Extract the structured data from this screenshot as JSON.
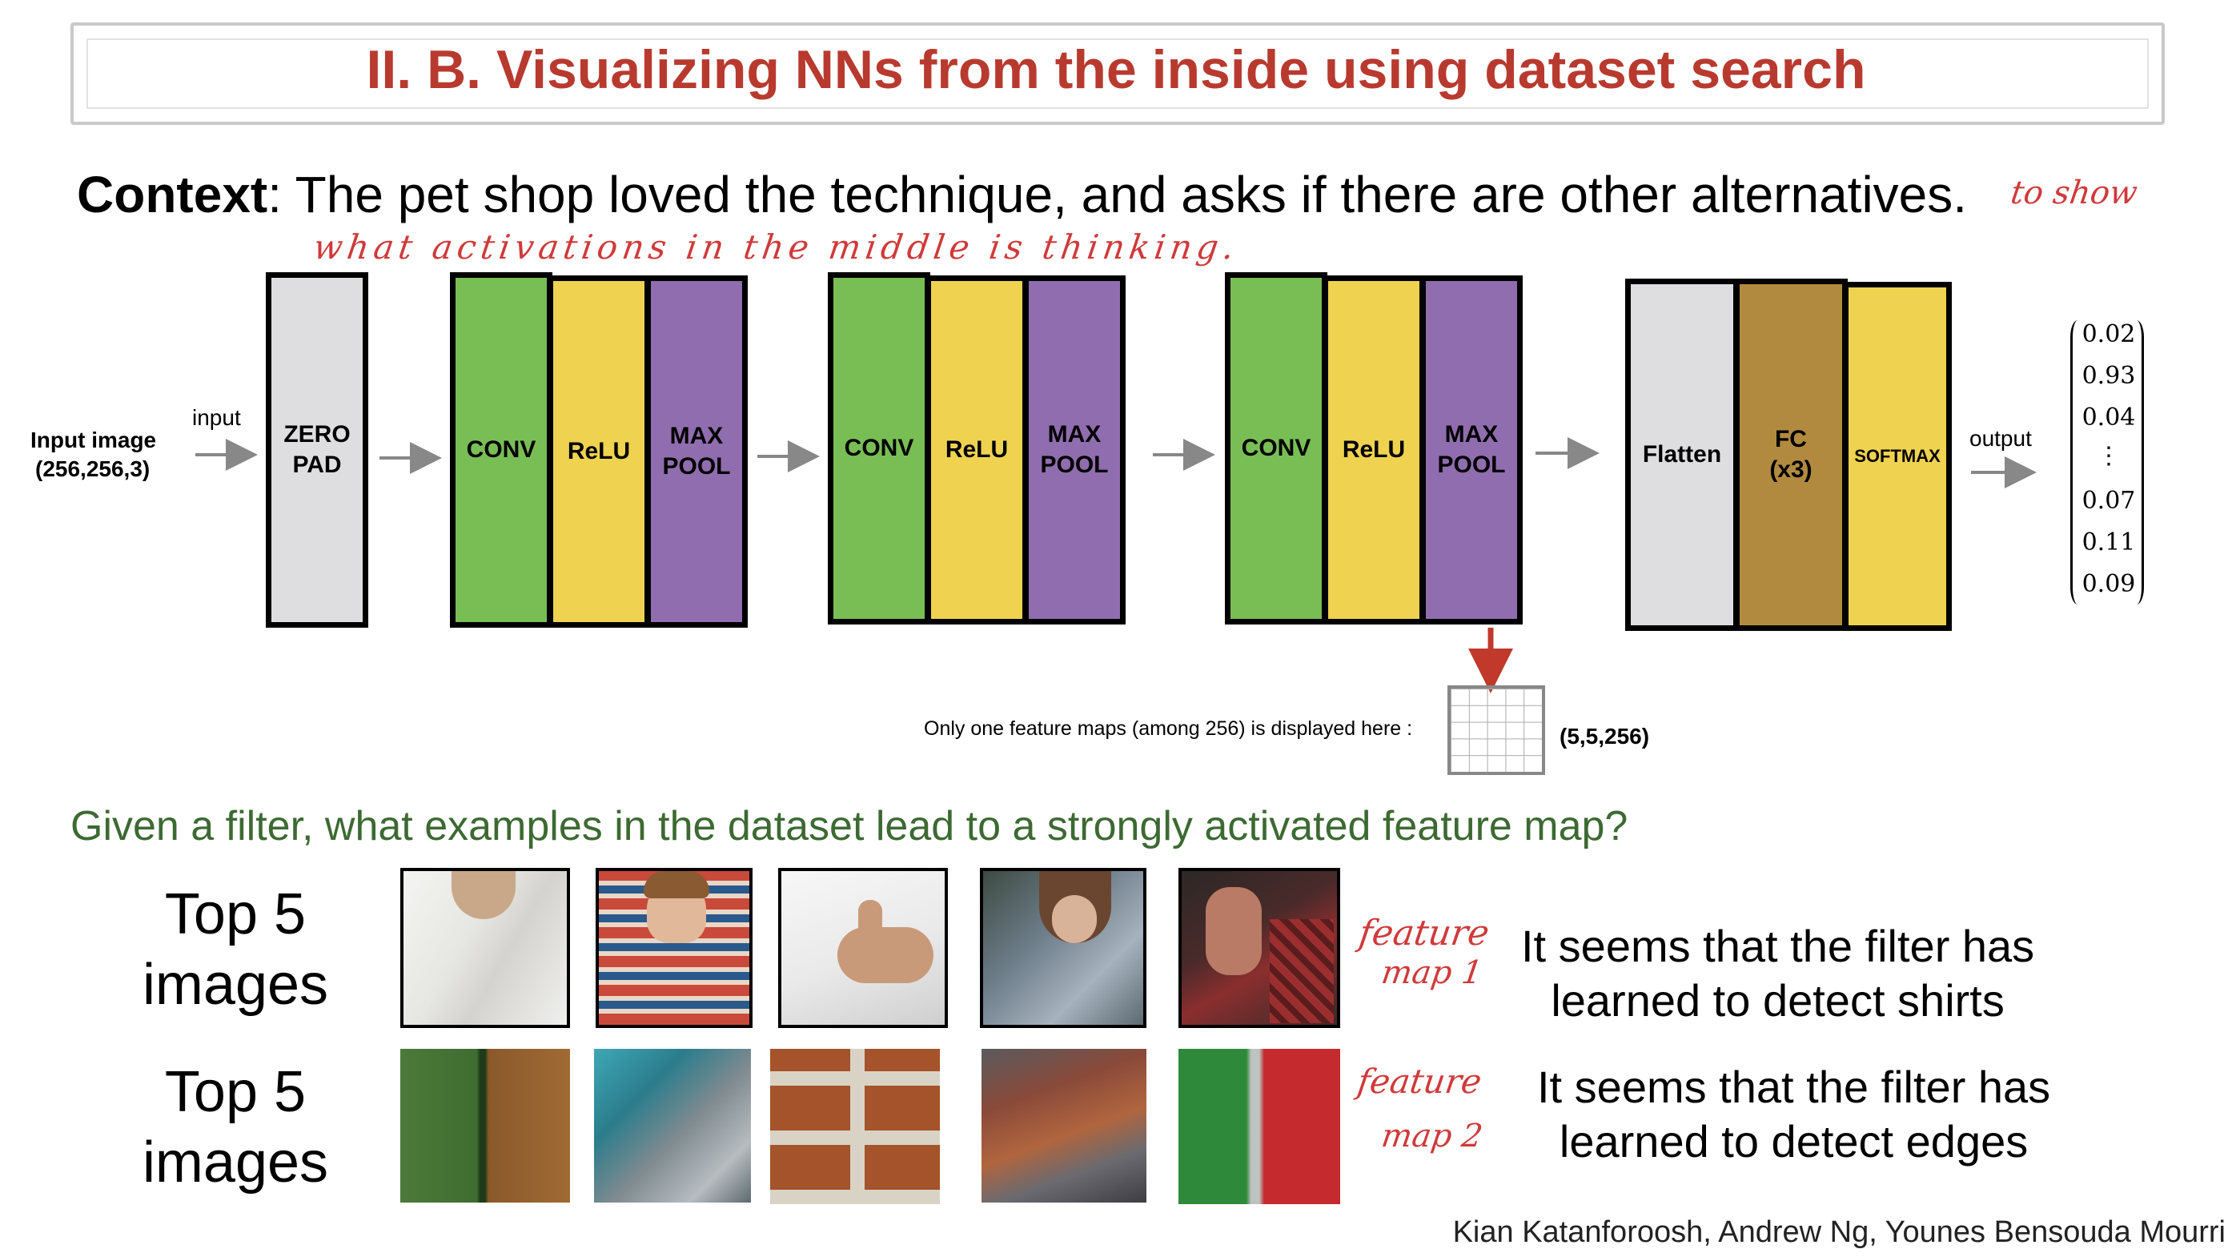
{
  "title": "II. B.  Visualizing NNs from the inside using dataset search",
  "context": {
    "label": "Context",
    "text": ": The pet shop loved the technique, and asks if there are other alternatives."
  },
  "handwriting": {
    "note_line1": "to show",
    "note_line2": "what activations in the middle is thinking.",
    "map1_line1": "feature",
    "map1_line2": "map 1",
    "map2_line1": "feature",
    "map2_line2": "map 2"
  },
  "network": {
    "input_label_line1": "Input image",
    "input_label_line2": "(256,256,3)",
    "input_arrow_label": "input",
    "zero_pad_line1": "ZERO",
    "zero_pad_line2": "PAD",
    "conv": "CONV",
    "relu": "ReLU",
    "maxpool_line1": "MAX",
    "maxpool_line2": "POOL",
    "flatten": "Flatten",
    "fc_line1": "FC",
    "fc_line2": "(x3)",
    "softmax": "SOFTMAX",
    "output_label": "output",
    "output_vector": [
      "0.02",
      "0.93",
      "0.04",
      "⋮",
      "0.07",
      "0.11",
      "0.09"
    ],
    "feature_map_caption": "Only one feature maps (among 256) is displayed here :",
    "feature_map_shape": "(5,5,256)"
  },
  "question": "Given a filter, what examples in the dataset lead to a strongly activated feature map?",
  "rows": [
    {
      "label_line1": "Top 5",
      "label_line2": "images",
      "conclusion_line1": "It seems that the filter has",
      "conclusion_line2": "learned to detect shirts",
      "image_names": [
        "white-shirt-photo",
        "plaid-shirt-boy-photo",
        "white-tshirt-thumbs-up-photo",
        "denim-shirt-woman-photo",
        "red-plaid-shirt-photo"
      ]
    },
    {
      "label_line1": "Top 5",
      "label_line2": "images",
      "conclusion_line1": "It seems that the filter has",
      "conclusion_line2": "learned to detect edges",
      "image_names": [
        "green-brown-edge-patch",
        "teal-blur-patch",
        "brick-wall-patch",
        "stone-brick-patch",
        "green-red-edge-patch"
      ]
    }
  ],
  "credit": "Kian Katanforoosh, Andrew Ng, Younes Bensouda Mourri",
  "colors": {
    "title": "#b83a2f",
    "question": "#3c6a32",
    "handwriting": "#d03a3a",
    "conv": "#79be55",
    "relu": "#efd24f",
    "maxpool": "#906dae",
    "zero_pad": "#dedee0",
    "fc": "#b28a3f",
    "feature_arrow": "#c0392b"
  }
}
